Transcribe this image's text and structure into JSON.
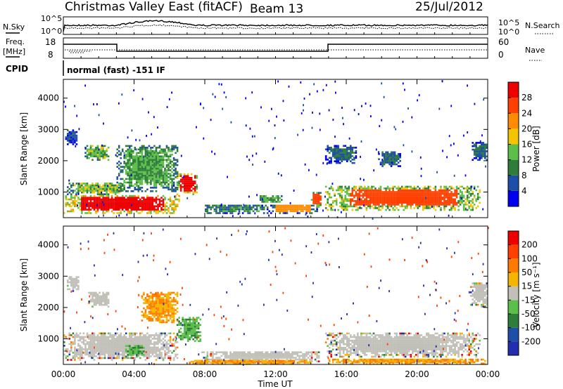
{
  "header": {
    "title": "Christmas Valley East (fitACF)",
    "beam": "Beam 13",
    "date": "25/Jul/2012"
  },
  "top_panels": {
    "nsky_label": "N.Sky",
    "nsky_ticks": [
      "10^5",
      "10^0"
    ],
    "nsearch_label": "N.Search",
    "nsearch_ticks": [
      "10^5",
      "10^0"
    ],
    "freq_label_1": "Freq.",
    "freq_label_2": "[MHz]",
    "freq_ticks": [
      "18",
      "8"
    ],
    "nave_label": "Nave",
    "nave_ticks": [
      "60",
      "0"
    ],
    "cpid_label": "CPID",
    "cpid_text": "normal (fast) -151 IF"
  },
  "chart_data": [
    {
      "type": "heatmap",
      "name": "power",
      "xlabel": "",
      "ylabel": "Slant Range [km]",
      "y_ticks": [
        "4000",
        "3000",
        "2000",
        "1000"
      ],
      "y_tick_values": [
        4000,
        3000,
        2000,
        1000
      ],
      "ylim": [
        180,
        4600
      ],
      "xlim": [
        "00:00",
        "24:00"
      ],
      "colorbar": {
        "label": "Power [dB]",
        "ticks": [
          "28",
          "24",
          "20",
          "16",
          "12",
          "8",
          "4"
        ],
        "tick_values": [
          28,
          24,
          20,
          16,
          12,
          8,
          4
        ],
        "range": [
          0,
          32
        ],
        "colors": [
          "#0000ee",
          "#1e4fa8",
          "#2e7d3a",
          "#5cbf4a",
          "#f5c400",
          "#ff8c00",
          "#ff4000",
          "#ee0000"
        ]
      },
      "blobs": [
        {
          "t0": 0.0,
          "t1": 6.6,
          "r0": 300,
          "r1": 900,
          "v": 30
        },
        {
          "t0": 0.2,
          "t1": 3.5,
          "r0": 900,
          "r1": 1300,
          "v": 14
        },
        {
          "t0": 1.2,
          "t1": 2.6,
          "r0": 2000,
          "r1": 2500,
          "v": 14
        },
        {
          "t0": 0.1,
          "t1": 0.8,
          "r0": 2500,
          "r1": 3000,
          "v": 6
        },
        {
          "t0": 3.0,
          "t1": 6.5,
          "r0": 1000,
          "r1": 2500,
          "v": 12
        },
        {
          "t0": 6.4,
          "t1": 7.6,
          "r0": 900,
          "r1": 1600,
          "v": 28
        },
        {
          "t0": 7.8,
          "t1": 11.5,
          "r0": 300,
          "r1": 600,
          "v": 10
        },
        {
          "t0": 11.5,
          "t1": 14.4,
          "r0": 300,
          "r1": 600,
          "v": 20
        },
        {
          "t0": 11.0,
          "t1": 12.4,
          "r0": 600,
          "r1": 900,
          "v": 12
        },
        {
          "t0": 14.0,
          "t1": 14.6,
          "r0": 500,
          "r1": 1000,
          "v": 25
        },
        {
          "t0": 14.8,
          "t1": 23.6,
          "r0": 400,
          "r1": 1200,
          "v": 27
        },
        {
          "t0": 14.8,
          "t1": 16.6,
          "r0": 1900,
          "r1": 2500,
          "v": 8
        },
        {
          "t0": 17.8,
          "t1": 19.1,
          "r0": 1800,
          "r1": 2300,
          "v": 8
        },
        {
          "t0": 23.1,
          "t1": 24.0,
          "r0": 2000,
          "r1": 2600,
          "v": 8
        }
      ]
    },
    {
      "type": "heatmap",
      "name": "velocity",
      "xlabel": "Time UT",
      "ylabel": "Slant Range [km]",
      "x_ticks": [
        "00:00",
        "04:00",
        "08:00",
        "12:00",
        "16:00",
        "20:00",
        "00:00"
      ],
      "x_tick_values": [
        0,
        4,
        8,
        12,
        16,
        20,
        24
      ],
      "y_ticks": [
        "4000",
        "3000",
        "2000",
        "1000"
      ],
      "y_tick_values": [
        4000,
        3000,
        2000,
        1000
      ],
      "ylim": [
        180,
        4600
      ],
      "colorbar": {
        "label": "Velocity [m s⁻¹]",
        "ticks": [
          "200",
          "100",
          "50",
          "15",
          "-15",
          "-50",
          "-100",
          "-200"
        ],
        "colors": [
          "#1f2fb0",
          "#1e4fa8",
          "#2e7d3a",
          "#5cbf4a",
          "#c0c0b8",
          "#f5b400",
          "#ff7a00",
          "#ff4000",
          "#ee0000"
        ]
      },
      "blobs": [
        {
          "t0": 0.0,
          "t1": 6.5,
          "r0": 300,
          "r1": 1200,
          "c": 4
        },
        {
          "t0": 0.2,
          "t1": 0.9,
          "r0": 2500,
          "r1": 3000,
          "c": 4
        },
        {
          "t0": 1.4,
          "t1": 2.6,
          "r0": 2000,
          "r1": 2500,
          "c": 4
        },
        {
          "t0": 4.4,
          "t1": 6.5,
          "r0": 1500,
          "r1": 2500,
          "c": 6
        },
        {
          "t0": 3.5,
          "t1": 4.6,
          "r0": 400,
          "r1": 800,
          "c": 3
        },
        {
          "t0": 6.4,
          "t1": 7.8,
          "r0": 900,
          "r1": 1700,
          "c": 3
        },
        {
          "t0": 7.8,
          "t1": 14.5,
          "r0": 250,
          "r1": 600,
          "c": 4
        },
        {
          "t0": 14.8,
          "t1": 23.6,
          "r0": 400,
          "r1": 1200,
          "c": 4
        },
        {
          "t0": 7.0,
          "t1": 14.0,
          "r0": 180,
          "r1": 300,
          "c": 6
        },
        {
          "t0": 15.0,
          "t1": 24.0,
          "r0": 180,
          "r1": 350,
          "c": 6
        },
        {
          "t0": 23.0,
          "t1": 24.0,
          "r0": 2000,
          "r1": 2800,
          "c": 4
        }
      ]
    }
  ]
}
